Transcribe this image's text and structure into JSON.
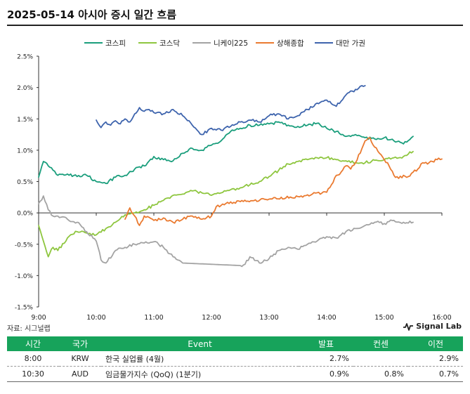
{
  "header": {
    "title": "2025-05-14 아시아 증시 일간 흐름"
  },
  "colors": {
    "kospi": "#1a9e7c",
    "kosdaq": "#8ec63f",
    "nikkei": "#a3a3a3",
    "shanghai": "#ea7a30",
    "taiwan": "#3e64ad",
    "table_header": "#17a35b"
  },
  "chart_data": {
    "type": "line",
    "xlabel": "",
    "ylabel": "",
    "x_ticks": [
      "9:00",
      "10:00",
      "11:00",
      "12:00",
      "13:00",
      "14:00",
      "15:00",
      "16:00"
    ],
    "xlim": [
      "9:00",
      "16:00"
    ],
    "y_ticks": [
      "2.5%",
      "2.0%",
      "1.5%",
      "1.0%",
      "0.5%",
      "0.0%",
      "-0.5%",
      "-1.0%",
      "-1.5%"
    ],
    "ylim": [
      -1.5,
      2.5
    ],
    "y_unit": "%",
    "legend_position": "top",
    "grid": false,
    "series": [
      {
        "name": "코스피",
        "color": "#1a9e7c",
        "x": [
          "9:00",
          "9:05",
          "9:10",
          "9:15",
          "9:20",
          "9:30",
          "9:40",
          "9:50",
          "10:00",
          "10:10",
          "10:20",
          "10:30",
          "10:40",
          "10:50",
          "11:00",
          "11:10",
          "11:20",
          "11:30",
          "11:40",
          "11:50",
          "12:00",
          "12:10",
          "12:20",
          "12:30",
          "12:40",
          "12:50",
          "13:00",
          "13:10",
          "13:20",
          "13:30",
          "13:40",
          "13:50",
          "14:00",
          "14:10",
          "14:20",
          "14:30",
          "14:40",
          "14:50",
          "15:00",
          "15:10",
          "15:20",
          "15:30"
        ],
        "values": [
          0.57,
          0.82,
          0.75,
          0.68,
          0.6,
          0.62,
          0.58,
          0.6,
          0.5,
          0.47,
          0.57,
          0.6,
          0.7,
          0.75,
          0.9,
          0.85,
          0.83,
          0.95,
          1.03,
          1.0,
          1.08,
          1.15,
          1.3,
          1.35,
          1.4,
          1.4,
          1.42,
          1.45,
          1.4,
          1.38,
          1.4,
          1.43,
          1.35,
          1.3,
          1.22,
          1.25,
          1.2,
          1.18,
          1.2,
          1.15,
          1.1,
          1.22
        ]
      },
      {
        "name": "코스닥",
        "color": "#8ec63f",
        "x": [
          "9:00",
          "9:05",
          "9:10",
          "9:15",
          "9:20",
          "9:30",
          "9:40",
          "9:50",
          "10:00",
          "10:10",
          "10:20",
          "10:30",
          "10:40",
          "10:50",
          "11:00",
          "11:10",
          "11:20",
          "11:30",
          "11:40",
          "11:50",
          "12:00",
          "12:10",
          "12:20",
          "12:30",
          "12:40",
          "12:50",
          "13:00",
          "13:10",
          "13:20",
          "13:30",
          "13:40",
          "13:50",
          "14:00",
          "14:10",
          "14:20",
          "14:30",
          "14:40",
          "14:50",
          "15:00",
          "15:10",
          "15:20",
          "15:30"
        ],
        "values": [
          -0.2,
          -0.45,
          -0.7,
          -0.55,
          -0.6,
          -0.4,
          -0.3,
          -0.32,
          -0.35,
          -0.25,
          -0.15,
          -0.03,
          0.0,
          0.05,
          0.12,
          0.2,
          0.28,
          0.3,
          0.35,
          0.32,
          0.28,
          0.32,
          0.37,
          0.4,
          0.45,
          0.5,
          0.58,
          0.68,
          0.78,
          0.82,
          0.85,
          0.88,
          0.88,
          0.85,
          0.83,
          0.8,
          0.8,
          0.84,
          0.85,
          0.88,
          0.9,
          0.98
        ]
      },
      {
        "name": "니케이225",
        "color": "#a3a3a3",
        "x": [
          "9:00",
          "9:05",
          "9:10",
          "9:15",
          "9:20",
          "9:30",
          "9:40",
          "9:50",
          "10:00",
          "10:05",
          "10:10",
          "10:20",
          "10:30",
          "10:40",
          "10:50",
          "11:00",
          "11:10",
          "11:20",
          "11:30",
          "12:00",
          "12:30",
          "12:35",
          "12:40",
          "12:50",
          "13:00",
          "13:10",
          "13:20",
          "13:30",
          "13:40",
          "13:50",
          "14:00",
          "14:10",
          "14:20",
          "14:30",
          "14:40",
          "14:50",
          "15:00",
          "15:10",
          "15:20",
          "15:30"
        ],
        "values": [
          0.15,
          0.27,
          0.05,
          -0.05,
          -0.05,
          -0.1,
          -0.15,
          -0.3,
          -0.45,
          -0.75,
          -0.8,
          -0.6,
          -0.55,
          -0.5,
          -0.48,
          -0.46,
          -0.55,
          -0.7,
          -0.8,
          -0.82,
          -0.84,
          -0.82,
          -0.7,
          -0.8,
          -0.73,
          -0.6,
          -0.55,
          -0.58,
          -0.5,
          -0.45,
          -0.38,
          -0.4,
          -0.3,
          -0.25,
          -0.2,
          -0.15,
          -0.17,
          -0.12,
          -0.15,
          -0.15
        ]
      },
      {
        "name": "상해종합",
        "color": "#ea7a30",
        "x": [
          "10:30",
          "10:35",
          "10:40",
          "10:45",
          "10:50",
          "11:00",
          "11:10",
          "11:20",
          "11:30",
          "11:40",
          "11:50",
          "12:00",
          "12:05",
          "12:10",
          "12:15",
          "12:30",
          "13:00",
          "13:30",
          "13:45",
          "14:00",
          "14:05",
          "14:10",
          "14:15",
          "14:20",
          "14:25",
          "14:30",
          "14:40",
          "14:45",
          "14:50",
          "14:55",
          "15:00",
          "15:05",
          "15:10",
          "15:15",
          "15:20",
          "15:25",
          "15:30",
          "15:35",
          "15:40",
          "15:45",
          "15:50",
          "15:55",
          "16:00"
        ],
        "values": [
          -0.1,
          0.08,
          -0.05,
          -0.2,
          -0.05,
          -0.12,
          -0.08,
          -0.15,
          -0.1,
          -0.05,
          -0.1,
          -0.05,
          0.1,
          0.12,
          0.15,
          0.18,
          0.22,
          0.26,
          0.3,
          0.33,
          0.45,
          0.6,
          0.65,
          0.75,
          0.7,
          0.8,
          1.15,
          1.2,
          1.05,
          0.95,
          0.85,
          0.75,
          0.6,
          0.55,
          0.6,
          0.58,
          0.65,
          0.7,
          0.8,
          0.78,
          0.82,
          0.85,
          0.86
        ]
      },
      {
        "name": "대만 가권",
        "color": "#3e64ad",
        "x": [
          "10:00",
          "10:05",
          "10:10",
          "10:15",
          "10:20",
          "10:25",
          "10:30",
          "10:35",
          "10:40",
          "10:45",
          "10:50",
          "10:55",
          "11:00",
          "11:10",
          "11:20",
          "11:30",
          "11:40",
          "11:50",
          "12:00",
          "12:10",
          "12:20",
          "12:30",
          "12:40",
          "12:50",
          "13:00",
          "13:10",
          "13:20",
          "13:30",
          "13:40",
          "13:50",
          "14:00",
          "14:10",
          "14:20",
          "14:30",
          "14:35",
          "14:40"
        ],
        "values": [
          1.48,
          1.36,
          1.45,
          1.4,
          1.47,
          1.42,
          1.5,
          1.45,
          1.58,
          1.68,
          1.62,
          1.65,
          1.6,
          1.58,
          1.65,
          1.55,
          1.4,
          1.25,
          1.35,
          1.32,
          1.38,
          1.45,
          1.48,
          1.45,
          1.55,
          1.58,
          1.5,
          1.55,
          1.65,
          1.75,
          1.8,
          1.7,
          1.88,
          1.97,
          2.02,
          2.03
        ]
      }
    ]
  },
  "source": {
    "label": "자료: 시그널랩"
  },
  "brand": {
    "icon": "pulse-icon",
    "label": "Signal Lab"
  },
  "events_table": {
    "headers": [
      "시간",
      "국가",
      "Event",
      "발표",
      "컨센",
      "이전"
    ],
    "rows": [
      {
        "time": "8:00",
        "country": "KRW",
        "event": "한국 실업률 (4월)",
        "actual": "2.7%",
        "consensus": "",
        "previous": "2.9%"
      },
      {
        "time": "10:30",
        "country": "AUD",
        "event": "임금물가지수 (QoQ) (1분기)",
        "actual": "0.9%",
        "consensus": "0.8%",
        "previous": "0.7%"
      }
    ]
  }
}
